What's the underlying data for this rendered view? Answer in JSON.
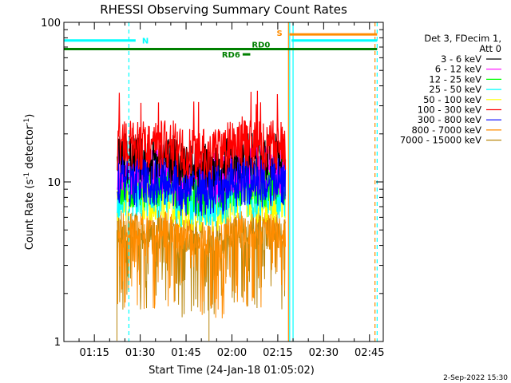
{
  "chart_data": {
    "type": "line",
    "title": "RHESSI Observing Summary Count Rates",
    "xlabel": "Start Time (24-Jan-18 01:05:02)",
    "ylabel_main": "Count Rate (s",
    "ylabel_sup1": "-1",
    "ylabel_mid": " detector",
    "ylabel_sup2": "-1",
    "ylabel_end": ")",
    "y_scale": "log",
    "ylim": [
      1,
      100
    ],
    "xlim_minutes": [
      65.03,
      169.5
    ],
    "y_ticks": [
      {
        "value": 1,
        "label": "1"
      },
      {
        "value": 10,
        "label": "10"
      },
      {
        "value": 100,
        "label": "100"
      }
    ],
    "x_ticks": [
      {
        "minutes": 75,
        "label": "01:15"
      },
      {
        "minutes": 90,
        "label": "01:30"
      },
      {
        "minutes": 105,
        "label": "01:45"
      },
      {
        "minutes": 120,
        "label": "02:00"
      },
      {
        "minutes": 135,
        "label": "02:15"
      },
      {
        "minutes": 150,
        "label": "02:30"
      },
      {
        "minutes": 165,
        "label": "02:45"
      }
    ],
    "legend_header": [
      "Det 3, FDecim 1,",
      "Att 0"
    ],
    "series": [
      {
        "name": "3 - 6 keV",
        "color": "#000000",
        "level": 14
      },
      {
        "name": "6 - 12 keV",
        "color": "#ff00ff",
        "level": 12
      },
      {
        "name": "12 - 25 keV",
        "color": "#00ff00",
        "level": 10
      },
      {
        "name": "25 - 50 keV",
        "color": "#00ffff",
        "level": 8.5
      },
      {
        "name": "50 - 100 keV",
        "color": "#ffff00",
        "level": 8
      },
      {
        "name": "100 - 300 keV",
        "color": "#ff0000",
        "level": 17
      },
      {
        "name": "300 - 800 keV",
        "color": "#0000ff",
        "level": 10
      },
      {
        "name": "800 - 7000 keV",
        "color": "#ff8c00",
        "level": 5
      },
      {
        "name": "7000 - 15000 keV",
        "color": "#b8860b",
        "level": 5
      }
    ],
    "data_start_minutes": 82.5,
    "data_end_minutes": 137.5,
    "status_bars": [
      {
        "label": "N",
        "color": "#00ffff",
        "y": 77,
        "from": 65.03,
        "to": 88.5
      },
      {
        "label": "N",
        "color": "#00ffff",
        "y": 77,
        "from": 139.5,
        "to": 167.5
      },
      {
        "label": "RD0",
        "color": "#008000",
        "y": 68,
        "from": 65.03,
        "to": 167.5
      },
      {
        "label": "RD6",
        "color": "#008000",
        "y": 63,
        "from": 123.5,
        "to": 126
      },
      {
        "label": "S",
        "color": "#ff8c00",
        "y": 84,
        "from": 138.8,
        "to": 167.5
      }
    ],
    "vlines": [
      {
        "minutes": 86.3,
        "color": "#00ffff",
        "dash": true
      },
      {
        "minutes": 138.5,
        "color": "#ff8c00",
        "dash": false
      },
      {
        "minutes": 138.9,
        "color": "#00ffff",
        "dash": false
      },
      {
        "minutes": 140.0,
        "color": "#00ffff",
        "dash": false
      },
      {
        "minutes": 166.8,
        "color": "#ff8c00",
        "dash": true
      },
      {
        "minutes": 167.5,
        "color": "#00ffff",
        "dash": true
      }
    ]
  },
  "footer_date": "2-Sep-2022 15:30"
}
